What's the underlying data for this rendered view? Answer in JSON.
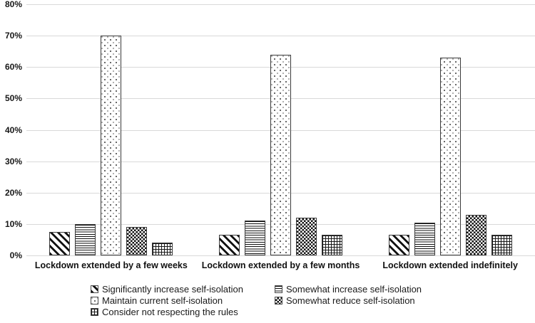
{
  "chart_data": {
    "type": "bar",
    "title": "",
    "xlabel": "",
    "ylabel": "",
    "ylim": [
      0,
      80
    ],
    "ytick_step": 10,
    "ytick_suffix": "%",
    "grid": true,
    "legend_position": "bottom",
    "categories": [
      "Lockdown extended by a few weeks",
      "Lockdown extended by a few months",
      "Lockdown extended indefinitely"
    ],
    "series": [
      {
        "name": "Significantly increase self-isolation",
        "pattern": "diagonal-stripes",
        "values": [
          7.5,
          6.5,
          6.5
        ]
      },
      {
        "name": "Somewhat increase self-isolation",
        "pattern": "horizontal-lines",
        "values": [
          10,
          11,
          10.5
        ]
      },
      {
        "name": "Maintain current self-isolation",
        "pattern": "dots",
        "values": [
          70,
          64,
          63
        ]
      },
      {
        "name": "Somewhat reduce self-isolation",
        "pattern": "checkerboard",
        "values": [
          9,
          12,
          13
        ]
      },
      {
        "name": "Consider not respecting the rules",
        "pattern": "grid",
        "values": [
          4,
          6.5,
          6.5
        ]
      }
    ]
  },
  "colors": {
    "gridline": "#d9d9d9",
    "bar_border": "#3a3a3a",
    "pattern_ink": "#111111",
    "text": "#111111",
    "background": "#ffffff"
  }
}
